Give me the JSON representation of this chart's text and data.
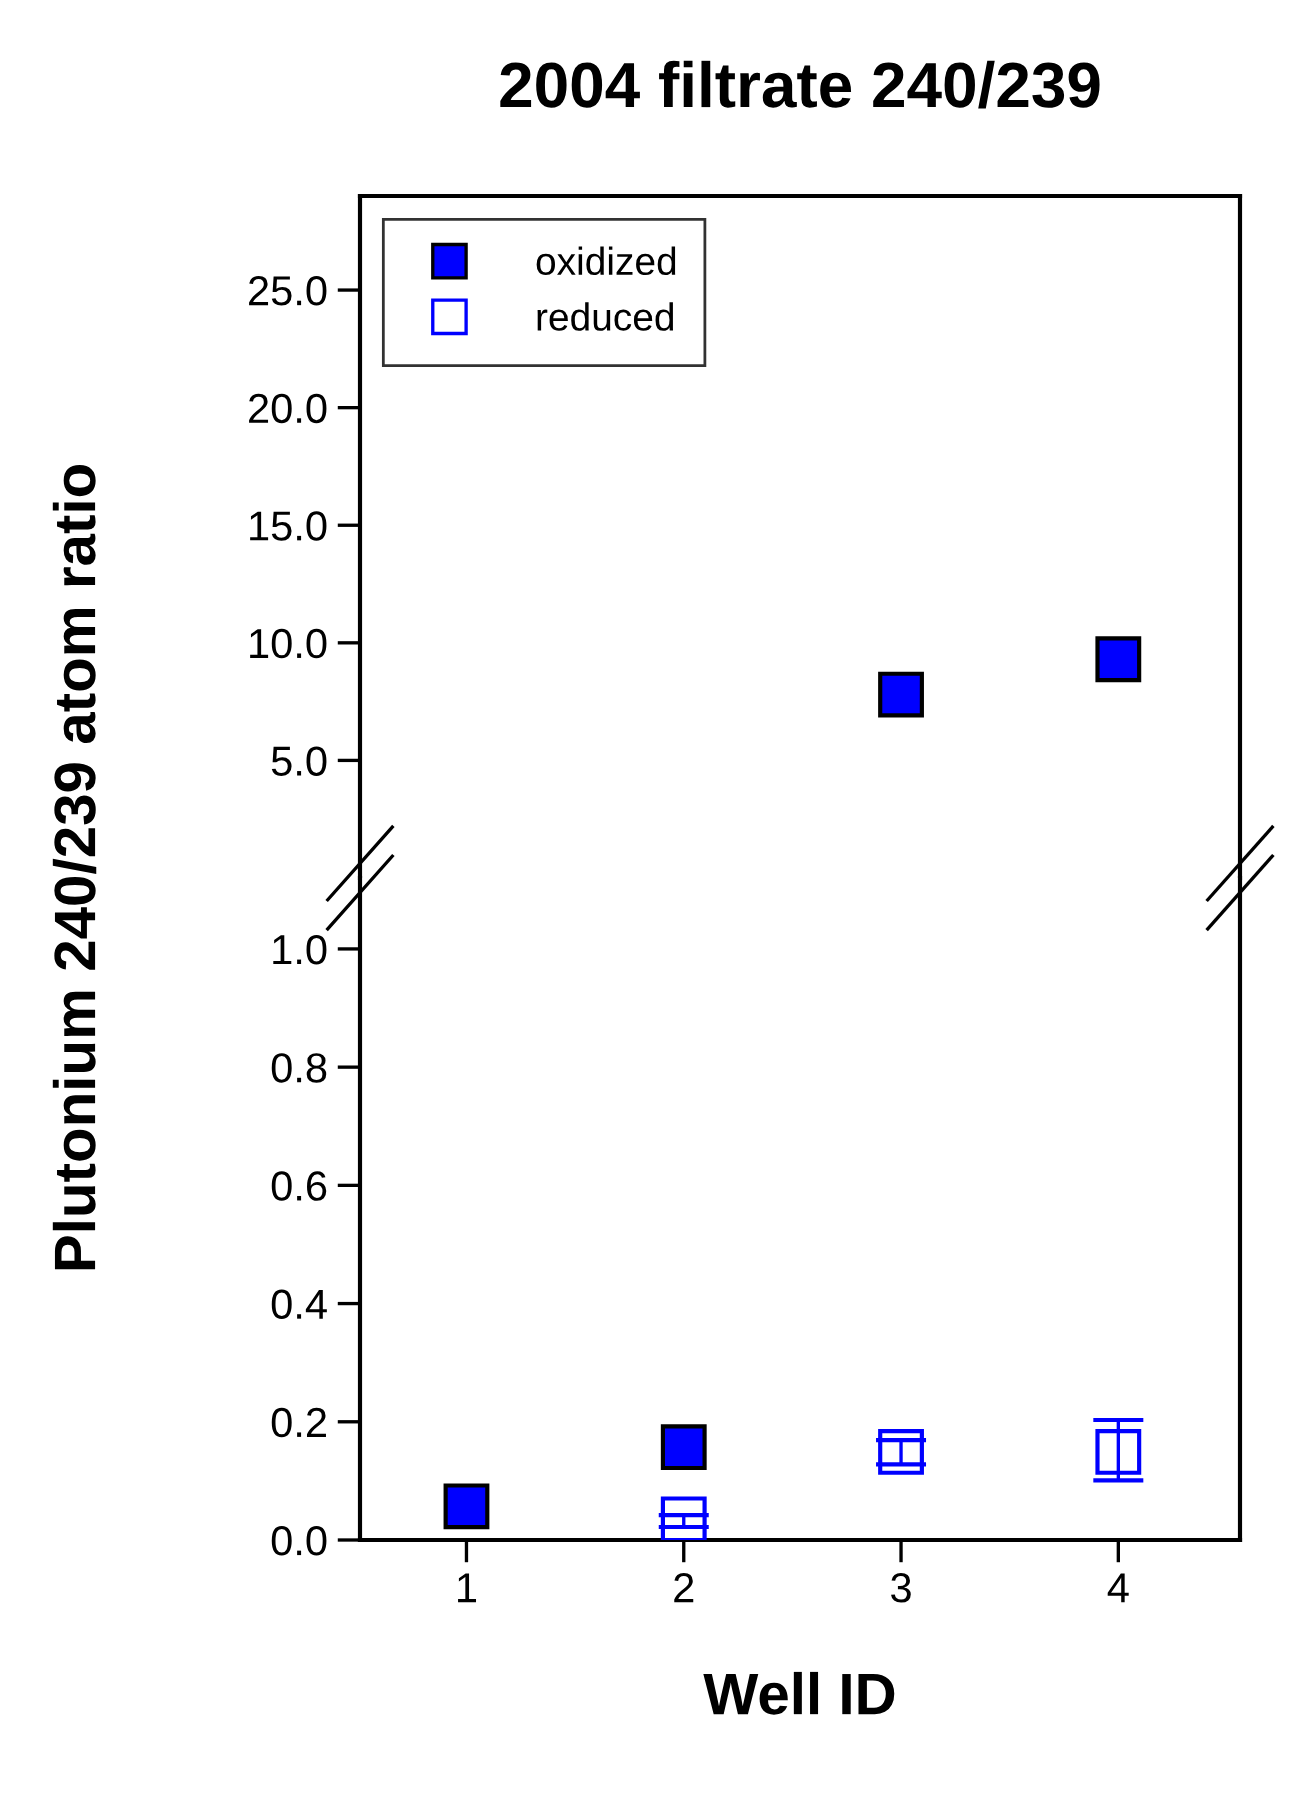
{
  "chart_data": [
    {
      "type": "scatter",
      "title": "2004 filtrate 240/239",
      "ylabel": "Plutonium 240/239 atom ratio",
      "categories": [
        "1",
        "2",
        "3",
        "4"
      ],
      "marker": "square",
      "legend": "top left",
      "grid": false,
      "tick_labels": "y",
      "ylim": [
        0,
        29
      ],
      "yticks": [
        {
          "value": 5,
          "label": "5.0"
        },
        {
          "value": 10,
          "label": "10.0"
        },
        {
          "value": 15,
          "label": "15.0"
        },
        {
          "value": 20,
          "label": "20.0"
        },
        {
          "value": 25,
          "label": "25.0"
        }
      ],
      "series": [
        {
          "name": "oxidized",
          "color": "#0000ff",
          "values": [
            null,
            null,
            7.8,
            9.3
          ]
        },
        {
          "name": "reduced",
          "color": "#0000ff",
          "values": [
            null,
            null,
            null,
            null
          ]
        }
      ]
    },
    {
      "type": "scatter",
      "xlabel": "Well ID",
      "categories": [
        "1",
        "2",
        "3",
        "4"
      ],
      "marker": "square",
      "grid": false,
      "ylim": [
        0,
        1.12
      ],
      "yticks": [
        {
          "value": 0,
          "label": "0.0"
        },
        {
          "value": 0.2,
          "label": "0.2"
        },
        {
          "value": 0.4,
          "label": "0.4"
        },
        {
          "value": 0.6,
          "label": "0.6"
        },
        {
          "value": 0.8,
          "label": "0.8"
        },
        {
          "value": 1,
          "label": "1.0"
        }
      ],
      "series": [
        {
          "color": "#0000ff",
          "values": [
            0.057,
            0.157,
            null,
            null
          ]
        },
        {
          "color": "#0000ff",
          "values": [
            null,
            0.035,
            0.149,
            0.149
          ],
          "errors": [
            null,
            [
              0.022,
              0.042
            ],
            [
              0.128,
              0.169
            ],
            [
              0.101,
              0.203
            ]
          ]
        }
      ]
    }
  ]
}
